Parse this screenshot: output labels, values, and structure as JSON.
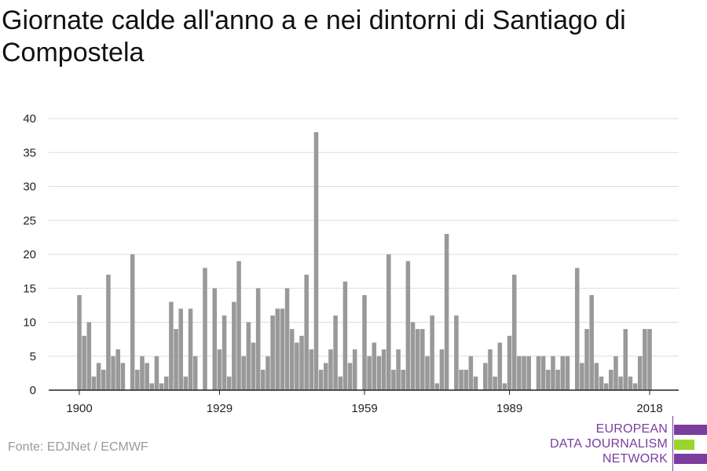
{
  "title": "Giornate calde all'anno a e nei dintorni di Santiago di Compostela",
  "source": "Fonte: EDJNet / ECMWF",
  "logo": {
    "lines": [
      "EUROPEAN",
      "DATA JOURNALISM",
      "NETWORK"
    ],
    "colors": {
      "text": "#7a3e9d",
      "purple": "#7a3e9d",
      "green": "#9ad52b"
    }
  },
  "colors": {
    "bar": "#999999",
    "grid": "#dddddd",
    "axis": "#222222"
  },
  "chart_data": {
    "type": "bar",
    "title": "Giornate calde all'anno a e nei dintorni di Santiago di Compostela",
    "xlabel": "",
    "ylabel": "",
    "ylim": [
      0,
      40
    ],
    "y_ticks": [
      0,
      5,
      10,
      15,
      20,
      25,
      30,
      35,
      40
    ],
    "x_ticks": [
      1900,
      1929,
      1959,
      1989,
      2018
    ],
    "grid": true,
    "categories": [
      1900,
      1901,
      1902,
      1903,
      1904,
      1905,
      1906,
      1907,
      1908,
      1909,
      1910,
      1911,
      1912,
      1913,
      1914,
      1915,
      1916,
      1917,
      1918,
      1919,
      1920,
      1921,
      1922,
      1923,
      1924,
      1925,
      1926,
      1927,
      1928,
      1929,
      1930,
      1931,
      1932,
      1933,
      1934,
      1935,
      1936,
      1937,
      1938,
      1939,
      1940,
      1941,
      1942,
      1943,
      1944,
      1945,
      1946,
      1947,
      1948,
      1949,
      1950,
      1951,
      1952,
      1953,
      1954,
      1955,
      1956,
      1957,
      1958,
      1959,
      1960,
      1961,
      1962,
      1963,
      1964,
      1965,
      1966,
      1967,
      1968,
      1969,
      1970,
      1971,
      1972,
      1973,
      1974,
      1975,
      1976,
      1977,
      1978,
      1979,
      1980,
      1981,
      1982,
      1983,
      1984,
      1985,
      1986,
      1987,
      1988,
      1989,
      1990,
      1991,
      1992,
      1993,
      1994,
      1995,
      1996,
      1997,
      1998,
      1999,
      2000,
      2001,
      2002,
      2003,
      2004,
      2005,
      2006,
      2007,
      2008,
      2009,
      2010,
      2011,
      2012,
      2013,
      2014,
      2015,
      2016,
      2017,
      2018
    ],
    "values": [
      14,
      8,
      10,
      2,
      4,
      3,
      17,
      5,
      6,
      4,
      0,
      20,
      3,
      5,
      4,
      1,
      5,
      1,
      2,
      13,
      9,
      12,
      2,
      12,
      5,
      0,
      18,
      0,
      15,
      6,
      11,
      2,
      13,
      19,
      5,
      10,
      7,
      15,
      3,
      5,
      11,
      12,
      12,
      15,
      9,
      7,
      8,
      17,
      6,
      38,
      3,
      4,
      6,
      11,
      2,
      16,
      4,
      6,
      0,
      14,
      5,
      7,
      5,
      6,
      20,
      3,
      6,
      3,
      19,
      10,
      9,
      9,
      5,
      11,
      1,
      6,
      23,
      0,
      11,
      3,
      3,
      5,
      2,
      0,
      4,
      6,
      2,
      7,
      1,
      8,
      17,
      5,
      5,
      5,
      0,
      5,
      5,
      3,
      5,
      3,
      5,
      5,
      0,
      18,
      4,
      9,
      14,
      4,
      2,
      1,
      3,
      5,
      2,
      9,
      2,
      1,
      5,
      9,
      9
    ]
  }
}
